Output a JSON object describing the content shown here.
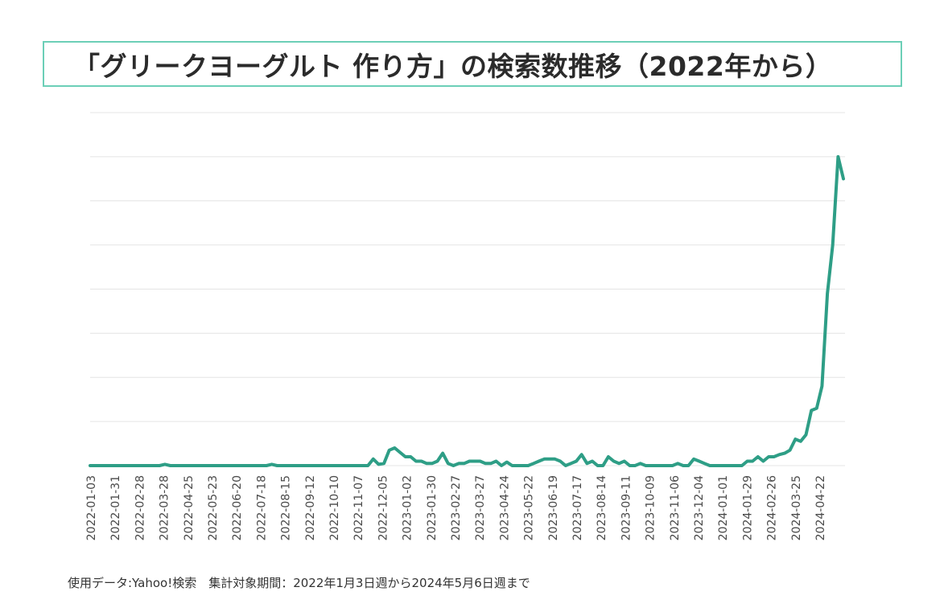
{
  "title": "「グリークヨーグルト 作り方」の検索数推移（2022年から）",
  "footnote": "使用データ:Yahoo!検索　集計対象期間：2022年1月3日週から2024年5月6日週まで",
  "colors": {
    "line": "#2e9e86",
    "grid": "#e4e4e4",
    "title_border": "#6ccfb7"
  },
  "chart_data": {
    "type": "line",
    "x_tick_labels": [
      "2022-01-03",
      "2022-01-31",
      "2022-02-28",
      "2022-03-28",
      "2022-04-25",
      "2022-05-23",
      "2022-06-20",
      "2022-07-18",
      "2022-08-15",
      "2022-09-12",
      "2022-10-10",
      "2022-11-07",
      "2022-12-05",
      "2023-01-02",
      "2023-01-30",
      "2023-02-27",
      "2023-03-27",
      "2023-04-24",
      "2023-05-22",
      "2023-06-19",
      "2023-07-17",
      "2023-08-14",
      "2023-09-11",
      "2023-10-09",
      "2023-11-06",
      "2023-12-04",
      "2024-01-01",
      "2024-01-29",
      "2024-02-26",
      "2024-03-25",
      "2024-04-22"
    ],
    "y_tick_labels": [],
    "ylim": [
      0,
      8
    ],
    "grid": true,
    "legend": "none",
    "series": [
      {
        "values": [
          0,
          0,
          0,
          0,
          0,
          0,
          0,
          0,
          0,
          0,
          0,
          0,
          0,
          0,
          0.03,
          0,
          0,
          0,
          0,
          0,
          0,
          0,
          0,
          0,
          0,
          0,
          0,
          0,
          0,
          0,
          0,
          0,
          0,
          0,
          0.03,
          0,
          0,
          0,
          0,
          0,
          0,
          0,
          0,
          0,
          0,
          0,
          0,
          0,
          0,
          0,
          0,
          0,
          0,
          0.15,
          0.03,
          0.05,
          0.35,
          0.4,
          0.3,
          0.2,
          0.2,
          0.1,
          0.1,
          0.05,
          0.05,
          0.1,
          0.28,
          0.05,
          0,
          0.05,
          0.05,
          0.1,
          0.1,
          0.1,
          0.05,
          0.05,
          0.1,
          0,
          0.08,
          0,
          0,
          0,
          0,
          0.05,
          0.1,
          0.15,
          0.15,
          0.15,
          0.1,
          0,
          0.05,
          0.1,
          0.25,
          0.05,
          0.1,
          0,
          0,
          0.2,
          0.1,
          0.05,
          0.1,
          0,
          0,
          0.05,
          0,
          0,
          0,
          0,
          0,
          0,
          0.05,
          0,
          0,
          0.15,
          0.1,
          0.05,
          0,
          0,
          0,
          0,
          0,
          0,
          0,
          0.1,
          0.1,
          0.2,
          0.1,
          0.2,
          0.2,
          0.25,
          0.28,
          0.35,
          0.6,
          0.55,
          0.7,
          1.25,
          1.3,
          1.8,
          3.9,
          5.0,
          7.0,
          6.5
        ]
      }
    ]
  }
}
